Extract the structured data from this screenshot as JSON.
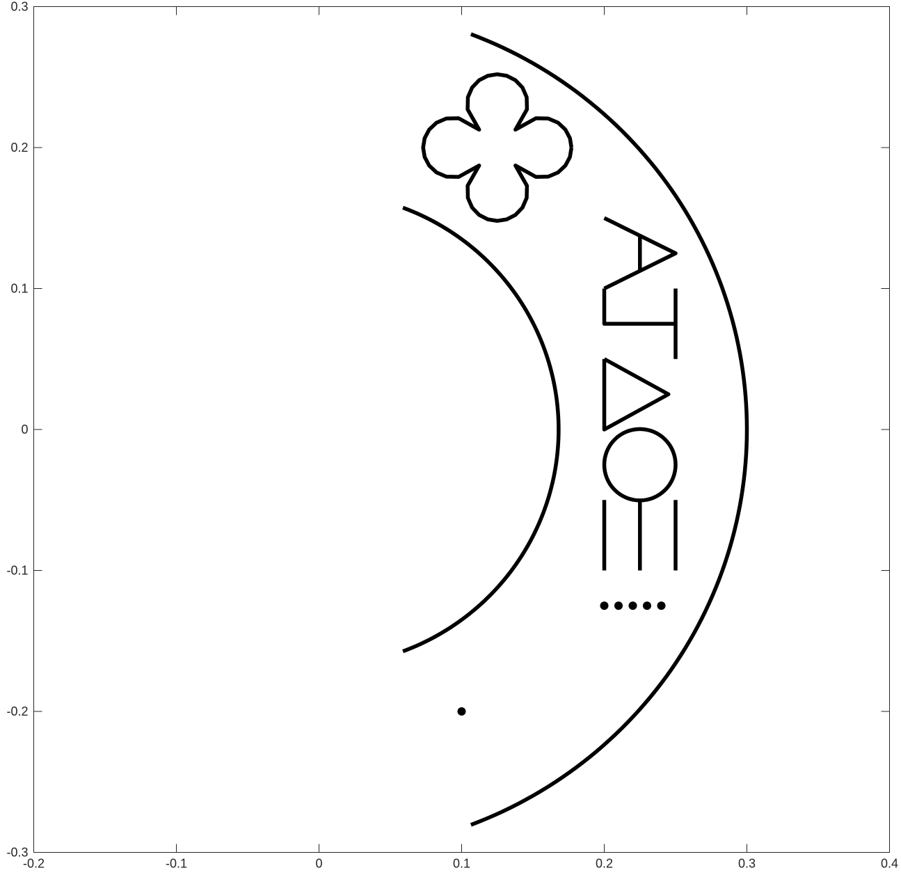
{
  "chart_data": {
    "type": "line",
    "title": "",
    "xlabel": "",
    "ylabel": "",
    "xlim": [
      -0.2,
      0.4
    ],
    "ylim": [
      -0.3,
      0.3
    ],
    "grid": false,
    "x_ticks": [
      -0.2,
      -0.1,
      0,
      0.1,
      0.2,
      0.3,
      0.4
    ],
    "y_ticks": [
      -0.3,
      -0.2,
      -0.1,
      0,
      0.1,
      0.2,
      0.3
    ],
    "x_tick_labels": [
      "-0.2",
      "-0.1",
      "0",
      "0.1",
      "0.2",
      "0.3",
      "0.4"
    ],
    "y_tick_labels": [
      "-0.3",
      "-0.2",
      "-0.1",
      "0",
      "0.1",
      "0.2",
      "0.3"
    ],
    "line_color": "#000000",
    "series": [
      {
        "kind": "arc",
        "center": [
          0,
          0
        ],
        "radius": 0.3,
        "angle_deg": [
          -69.2,
          69.2
        ]
      },
      {
        "kind": "arc",
        "center": [
          0,
          0
        ],
        "radius": 0.168,
        "angle_deg": [
          -69.5,
          69.5
        ]
      },
      {
        "kind": "flower",
        "center": [
          0.125,
          0.2
        ],
        "base_radius": 0.04,
        "amplitude": 0.012,
        "petals": 4,
        "samples": 48
      },
      {
        "kind": "polyline",
        "points": [
          [
            0.2,
            0.15
          ],
          [
            0.25,
            0.125
          ],
          [
            0.2,
            0.1
          ]
        ]
      },
      {
        "kind": "polyline",
        "points": [
          [
            0.225,
            0.138
          ],
          [
            0.225,
            0.113
          ]
        ]
      },
      {
        "kind": "polyline",
        "points": [
          [
            0.2,
            0.1
          ],
          [
            0.2,
            0.075
          ],
          [
            0.25,
            0.075
          ]
        ]
      },
      {
        "kind": "polyline",
        "points": [
          [
            0.25,
            0.1
          ],
          [
            0.25,
            0.05
          ]
        ]
      },
      {
        "kind": "polyline",
        "points": [
          [
            0.2,
            0.05
          ],
          [
            0.245,
            0.025
          ],
          [
            0.2,
            0.0
          ],
          [
            0.2,
            0.05
          ]
        ]
      },
      {
        "kind": "circle",
        "center": [
          0.225,
          -0.025
        ],
        "radius": 0.025
      },
      {
        "kind": "polyline",
        "points": [
          [
            0.2,
            -0.05
          ],
          [
            0.2,
            -0.1
          ]
        ]
      },
      {
        "kind": "polyline",
        "points": [
          [
            0.225,
            -0.05
          ],
          [
            0.225,
            -0.1
          ]
        ]
      },
      {
        "kind": "polyline",
        "points": [
          [
            0.25,
            -0.05
          ],
          [
            0.25,
            -0.1
          ]
        ]
      },
      {
        "kind": "dots",
        "points": [
          [
            0.2,
            -0.125
          ],
          [
            0.21,
            -0.125
          ],
          [
            0.22,
            -0.125
          ],
          [
            0.23,
            -0.125
          ],
          [
            0.24,
            -0.125
          ]
        ]
      },
      {
        "kind": "dots",
        "points": [
          [
            0.1,
            -0.2
          ]
        ]
      }
    ]
  }
}
